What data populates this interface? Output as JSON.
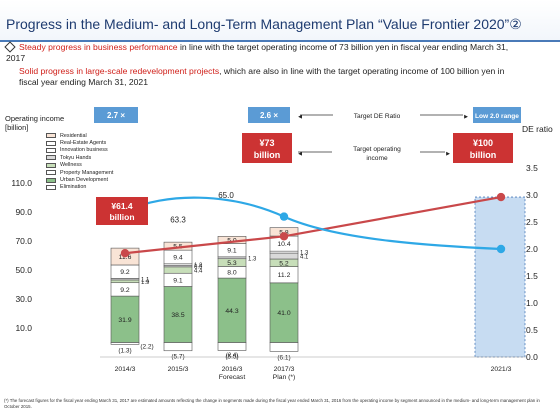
{
  "slide": {
    "title": "Progress in the Medium- and Long-Term Management Plan “Value Frontier 2020”②",
    "bullets": [
      {
        "highlight": "Steady progress in business performance",
        "text": " in line with the target operating income of 73 billion yen in fiscal year ending March 31, 2017"
      },
      {
        "highlight": "Solid progress in large-scale redevelopment projects",
        "text": ", which are also in line with the target operating income of 100 billion yen in fiscal year ending March 31, 2021"
      }
    ],
    "footnote": "(*) The forecast figures for the fiscal year ending March 31, 2017 are estimated amounts reflecting the change in segments made during the fiscal year ended March 31, 2016 from the operating income by segment announced in the medium- and long-term management plan in October 2015."
  },
  "chart_data": {
    "type": "bar",
    "left_axis_title": "Operating income\n[billion]",
    "right_axis_title": "DE ratio",
    "ylim": [
      -10,
      120
    ],
    "yticks": [
      "10.0",
      "30.0",
      "50.0",
      "70.0",
      "90.0",
      "110.0"
    ],
    "right_ylim": [
      0.0,
      3.5
    ],
    "right_yticks": [
      "0.0",
      "0.5",
      "1.0",
      "1.5",
      "2.0",
      "2.5",
      "3.0",
      "3.5"
    ],
    "categories": [
      "2014/3",
      "2015/3",
      "2016/3\nForecast",
      "2017/3\nPlan (*)",
      "2021/3"
    ],
    "legend": [
      "Residential",
      "Real-Estate Agents",
      "Innovation business",
      "Tokyu Hands",
      "Wellness",
      "Property Management",
      "Urban Development",
      "Elimination"
    ],
    "colors": {
      "urban_development": "#8cc08a",
      "property_management": "#ffffff",
      "wellness": "#c7deb9",
      "tokyu_hands": "#d9d9d9",
      "innovation_business": "#ffffff",
      "real_estate_agents": "#ffffff",
      "residential": "#f9e4d6",
      "de_ratio_line": "#2ea8e6",
      "operating_income_line": "#c9484a",
      "callout_red": "#cc3333",
      "callout_blue": "#5b9bd5",
      "projection_bar": "#c7dcf2"
    },
    "series": [
      {
        "name": "Urban Development",
        "values": [
          31.9,
          38.5,
          44.3,
          41.0,
          null
        ],
        "labels": [
          "31.9",
          "38.5",
          "44.3",
          "41.0",
          ""
        ]
      },
      {
        "name": "Property Management",
        "values": [
          9.2,
          9.1,
          8.0,
          11.2,
          null
        ],
        "labels": [
          "9.2",
          "9.1",
          "8.0",
          "11.2",
          ""
        ]
      },
      {
        "name": "Wellness",
        "values": [
          1.9,
          4.4,
          5.3,
          5.2,
          null
        ],
        "labels": [
          "1.9",
          "4.4",
          "5.3",
          "5.2",
          ""
        ]
      },
      {
        "name": "Tokyu Hands",
        "values": [
          1.1,
          0.9,
          1.3,
          4.1,
          null
        ],
        "labels": [
          "1.1",
          "0.9",
          "1.3",
          "4.1",
          ""
        ]
      },
      {
        "name": "Innovation business",
        "values": [
          0,
          1.2,
          0,
          1.3,
          null
        ],
        "labels": [
          "",
          "1.2",
          "",
          "1.3",
          ""
        ]
      },
      {
        "name": "Real-Estate Agents",
        "values": [
          9.2,
          9.4,
          9.1,
          10.4,
          null
        ],
        "labels": [
          "9.2",
          "9.4",
          "9.1",
          "10.4",
          ""
        ]
      },
      {
        "name": "Residential",
        "values": [
          11.6,
          5.5,
          5.0,
          5.8,
          null
        ],
        "labels": [
          "11.6",
          "5.5",
          "5.0",
          "5.8",
          ""
        ]
      },
      {
        "name": "Elimination",
        "values": [
          -1.3,
          -5.7,
          -5.5,
          -6.1,
          null
        ],
        "labels": [
          "(1.3)",
          "(5.7)",
          "(5.5)",
          "(6.1)",
          ""
        ]
      }
    ],
    "extra_labels": [
      "(2.2)",
      "(2.4)"
    ],
    "totals": [
      null,
      "63.3",
      "65.0",
      null,
      null
    ],
    "operating_income_line": [
      61.4,
      null,
      null,
      73,
      100
    ],
    "de_ratio_line": [
      2.7,
      null,
      2.6,
      null,
      2.0
    ],
    "callouts": {
      "de_2014": "2.7 ×",
      "de_2017": "2.6 ×",
      "de_2021": "Low 2.0 range",
      "target_de_ratio": "Target DE Ratio",
      "target_operating_income": "Target operating\nincome",
      "oi_2014_value": "¥61.4",
      "oi_2017_value": "¥73",
      "oi_2021_value": "¥100",
      "unit": "billion"
    }
  }
}
